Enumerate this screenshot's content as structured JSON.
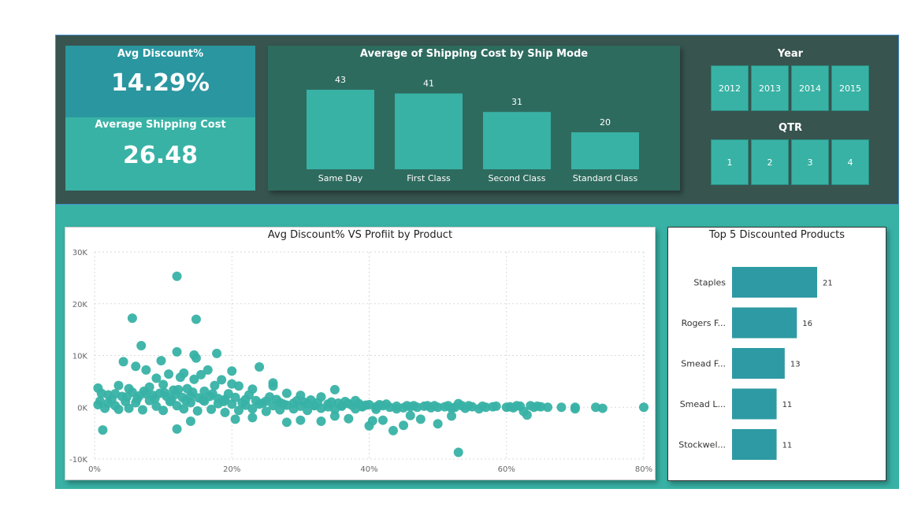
{
  "kpis": {
    "avg_discount_label": "Avg Discount%",
    "avg_discount_value": "14.29%",
    "avg_shipping_label": "Average Shipping Cost",
    "avg_shipping_value": "26.48"
  },
  "colors": {
    "top_band": "#37544f",
    "teal": "#38b2a5",
    "kpi_top": "#2a96a0",
    "bar_card": "#2e6b5f",
    "bar": "#38b2a5",
    "top5_bar": "#2e9aa3"
  },
  "slicers": {
    "year_title": "Year",
    "years": [
      "2012",
      "2013",
      "2014",
      "2015"
    ],
    "qtr_title": "QTR",
    "qtrs": [
      "1",
      "2",
      "3",
      "4"
    ]
  },
  "chart_data": [
    {
      "type": "bar",
      "title": "Average of Shipping Cost by Ship Mode",
      "categories": [
        "Same Day",
        "First Class",
        "Second Class",
        "Standard Class"
      ],
      "values": [
        43,
        41,
        31,
        20
      ],
      "data_labels": [
        "43",
        "41",
        "31",
        "20"
      ],
      "ylim": [
        0,
        43
      ]
    },
    {
      "type": "scatter",
      "title": "Avg Discount% VS Profiit by Product",
      "xlim": [
        0,
        0.8
      ],
      "ylim": [
        -10000,
        30000
      ],
      "x_ticks": [
        "0%",
        "20%",
        "40%",
        "60%",
        "80%"
      ],
      "y_ticks": [
        "30K",
        "20K",
        "10K",
        "0K",
        "-10K"
      ],
      "grid": true,
      "points": [
        {
          "x": 0.12,
          "y": 25300
        },
        {
          "x": 0.055,
          "y": 17200
        },
        {
          "x": 0.148,
          "y": 17000
        },
        {
          "x": 0.068,
          "y": 11900
        },
        {
          "x": 0.12,
          "y": 10700
        },
        {
          "x": 0.145,
          "y": 10100
        },
        {
          "x": 0.148,
          "y": 9500
        },
        {
          "x": 0.178,
          "y": 10400
        },
        {
          "x": 0.042,
          "y": 8800
        },
        {
          "x": 0.097,
          "y": 9000
        },
        {
          "x": 0.24,
          "y": 7800
        },
        {
          "x": 0.2,
          "y": 7000
        },
        {
          "x": 0.06,
          "y": 7900
        },
        {
          "x": 0.075,
          "y": 7200
        },
        {
          "x": 0.13,
          "y": 6600
        },
        {
          "x": 0.155,
          "y": 6300
        },
        {
          "x": 0.165,
          "y": 7200
        },
        {
          "x": 0.108,
          "y": 6400
        },
        {
          "x": 0.09,
          "y": 5600
        },
        {
          "x": 0.125,
          "y": 5800
        },
        {
          "x": 0.145,
          "y": 5400
        },
        {
          "x": 0.185,
          "y": 5300
        },
        {
          "x": 0.035,
          "y": 4200
        },
        {
          "x": 0.05,
          "y": 3600
        },
        {
          "x": 0.08,
          "y": 3900
        },
        {
          "x": 0.1,
          "y": 4400
        },
        {
          "x": 0.115,
          "y": 3300
        },
        {
          "x": 0.135,
          "y": 3600
        },
        {
          "x": 0.16,
          "y": 3100
        },
        {
          "x": 0.175,
          "y": 4200
        },
        {
          "x": 0.2,
          "y": 4500
        },
        {
          "x": 0.21,
          "y": 4100
        },
        {
          "x": 0.23,
          "y": 3500
        },
        {
          "x": 0.26,
          "y": 4100
        },
        {
          "x": 0.26,
          "y": 4700
        },
        {
          "x": 0.28,
          "y": 2700
        },
        {
          "x": 0.3,
          "y": 2300
        },
        {
          "x": 0.33,
          "y": 2000
        },
        {
          "x": 0.35,
          "y": 3400
        },
        {
          "x": 0.38,
          "y": 1300
        },
        {
          "x": 0.005,
          "y": 3700
        },
        {
          "x": 0.01,
          "y": 2700
        },
        {
          "x": 0.02,
          "y": 2400
        },
        {
          "x": 0.03,
          "y": 2600
        },
        {
          "x": 0.04,
          "y": 2100
        },
        {
          "x": 0.055,
          "y": 2900
        },
        {
          "x": 0.065,
          "y": 2200
        },
        {
          "x": 0.075,
          "y": 2600
        },
        {
          "x": 0.085,
          "y": 2300
        },
        {
          "x": 0.095,
          "y": 2700
        },
        {
          "x": 0.105,
          "y": 2100
        },
        {
          "x": 0.118,
          "y": 2500
        },
        {
          "x": 0.128,
          "y": 1900
        },
        {
          "x": 0.14,
          "y": 2200
        },
        {
          "x": 0.152,
          "y": 1800
        },
        {
          "x": 0.168,
          "y": 2100
        },
        {
          "x": 0.18,
          "y": 1700
        },
        {
          "x": 0.19,
          "y": 1500
        },
        {
          "x": 0.205,
          "y": 1900
        },
        {
          "x": 0.22,
          "y": 1500
        },
        {
          "x": 0.235,
          "y": 1300
        },
        {
          "x": 0.25,
          "y": 1200
        },
        {
          "x": 0.27,
          "y": 900
        },
        {
          "x": 0.29,
          "y": 800
        },
        {
          "x": 0.31,
          "y": 700
        },
        {
          "x": 0.32,
          "y": 400
        },
        {
          "x": 0.34,
          "y": 600
        },
        {
          "x": 0.36,
          "y": 300
        },
        {
          "x": 0.37,
          "y": 700
        },
        {
          "x": 0.39,
          "y": 200
        },
        {
          "x": 0.4,
          "y": 500
        },
        {
          "x": 0.41,
          "y": 100
        },
        {
          "x": 0.42,
          "y": 300
        },
        {
          "x": 0.43,
          "y": 0
        },
        {
          "x": 0.44,
          "y": 200
        },
        {
          "x": 0.45,
          "y": -100
        },
        {
          "x": 0.46,
          "y": 100
        },
        {
          "x": 0.47,
          "y": 0
        },
        {
          "x": 0.48,
          "y": 200
        },
        {
          "x": 0.49,
          "y": -100
        },
        {
          "x": 0.5,
          "y": 0
        },
        {
          "x": 0.51,
          "y": 100
        },
        {
          "x": 0.52,
          "y": -200
        },
        {
          "x": 0.525,
          "y": 0
        },
        {
          "x": 0.53,
          "y": 700
        },
        {
          "x": 0.54,
          "y": -200
        },
        {
          "x": 0.55,
          "y": 100
        },
        {
          "x": 0.56,
          "y": -300
        },
        {
          "x": 0.57,
          "y": 0
        },
        {
          "x": 0.58,
          "y": 100
        },
        {
          "x": 0.6,
          "y": 0
        },
        {
          "x": 0.61,
          "y": -100
        },
        {
          "x": 0.62,
          "y": 200
        },
        {
          "x": 0.625,
          "y": -800
        },
        {
          "x": 0.63,
          "y": -1500
        },
        {
          "x": 0.64,
          "y": 0
        },
        {
          "x": 0.65,
          "y": 100
        },
        {
          "x": 0.66,
          "y": 0
        },
        {
          "x": 0.68,
          "y": 0
        },
        {
          "x": 0.7,
          "y": 0
        },
        {
          "x": 0.7,
          "y": -300
        },
        {
          "x": 0.73,
          "y": 0
        },
        {
          "x": 0.74,
          "y": -200
        },
        {
          "x": 0.8,
          "y": 0
        },
        {
          "x": 0.012,
          "y": -4400
        },
        {
          "x": 0.12,
          "y": -4200
        },
        {
          "x": 0.14,
          "y": -2700
        },
        {
          "x": 0.205,
          "y": -2300
        },
        {
          "x": 0.23,
          "y": -2000
        },
        {
          "x": 0.28,
          "y": -2900
        },
        {
          "x": 0.3,
          "y": -2500
        },
        {
          "x": 0.33,
          "y": -2700
        },
        {
          "x": 0.35,
          "y": -1700
        },
        {
          "x": 0.37,
          "y": -2200
        },
        {
          "x": 0.405,
          "y": -2600
        },
        {
          "x": 0.42,
          "y": -2500
        },
        {
          "x": 0.4,
          "y": -3600
        },
        {
          "x": 0.46,
          "y": -1600
        },
        {
          "x": 0.435,
          "y": -4500
        },
        {
          "x": 0.475,
          "y": -2300
        },
        {
          "x": 0.5,
          "y": -3200
        },
        {
          "x": 0.53,
          "y": -8700
        },
        {
          "x": 0.52,
          "y": -1700
        },
        {
          "x": 0.45,
          "y": -3500
        },
        {
          "x": 0.005,
          "y": 500
        },
        {
          "x": 0.008,
          "y": 1200
        },
        {
          "x": 0.015,
          "y": -200
        },
        {
          "x": 0.02,
          "y": 800
        },
        {
          "x": 0.025,
          "y": 1500
        },
        {
          "x": 0.03,
          "y": 300
        },
        {
          "x": 0.035,
          "y": -400
        },
        {
          "x": 0.045,
          "y": 1100
        },
        {
          "x": 0.05,
          "y": -200
        },
        {
          "x": 0.06,
          "y": 900
        },
        {
          "x": 0.07,
          "y": -500
        },
        {
          "x": 0.08,
          "y": 1300
        },
        {
          "x": 0.09,
          "y": 200
        },
        {
          "x": 0.1,
          "y": -600
        },
        {
          "x": 0.11,
          "y": 1100
        },
        {
          "x": 0.12,
          "y": 300
        },
        {
          "x": 0.13,
          "y": -300
        },
        {
          "x": 0.14,
          "y": 900
        },
        {
          "x": 0.15,
          "y": -700
        },
        {
          "x": 0.16,
          "y": 1200
        },
        {
          "x": 0.17,
          "y": -400
        },
        {
          "x": 0.18,
          "y": 700
        },
        {
          "x": 0.19,
          "y": -1000
        },
        {
          "x": 0.2,
          "y": 600
        },
        {
          "x": 0.21,
          "y": -600
        },
        {
          "x": 0.22,
          "y": 400
        },
        {
          "x": 0.23,
          "y": -300
        },
        {
          "x": 0.24,
          "y": 600
        },
        {
          "x": 0.25,
          "y": -800
        },
        {
          "x": 0.26,
          "y": 300
        },
        {
          "x": 0.27,
          "y": -500
        },
        {
          "x": 0.28,
          "y": 400
        },
        {
          "x": 0.29,
          "y": -300
        },
        {
          "x": 0.3,
          "y": 200
        },
        {
          "x": 0.31,
          "y": -600
        },
        {
          "x": 0.32,
          "y": 300
        },
        {
          "x": 0.33,
          "y": -200
        },
        {
          "x": 0.34,
          "y": 100
        },
        {
          "x": 0.35,
          "y": -400
        },
        {
          "x": 0.36,
          "y": 200
        },
        {
          "x": 0.38,
          "y": -300
        },
        {
          "x": 0.39,
          "y": 100
        },
        {
          "x": 0.41,
          "y": -400
        },
        {
          "x": 0.44,
          "y": -300
        },
        {
          "x": 0.047,
          "y": 2000
        },
        {
          "x": 0.062,
          "y": 1600
        },
        {
          "x": 0.072,
          "y": 3100
        },
        {
          "x": 0.088,
          "y": 1700
        },
        {
          "x": 0.102,
          "y": 2800
        },
        {
          "x": 0.112,
          "y": 1400
        },
        {
          "x": 0.122,
          "y": 3400
        },
        {
          "x": 0.133,
          "y": 1300
        },
        {
          "x": 0.143,
          "y": 2900
        },
        {
          "x": 0.158,
          "y": 1400
        },
        {
          "x": 0.172,
          "y": 2600
        },
        {
          "x": 0.188,
          "y": 1100
        },
        {
          "x": 0.195,
          "y": 2600
        },
        {
          "x": 0.215,
          "y": 900
        },
        {
          "x": 0.225,
          "y": 2400
        },
        {
          "x": 0.245,
          "y": 800
        },
        {
          "x": 0.255,
          "y": 2000
        },
        {
          "x": 0.265,
          "y": 1500
        },
        {
          "x": 0.275,
          "y": 600
        },
        {
          "x": 0.295,
          "y": 1300
        },
        {
          "x": 0.305,
          "y": 1000
        },
        {
          "x": 0.315,
          "y": 1400
        },
        {
          "x": 0.325,
          "y": 900
        },
        {
          "x": 0.345,
          "y": 1000
        },
        {
          "x": 0.355,
          "y": 800
        },
        {
          "x": 0.365,
          "y": 1100
        },
        {
          "x": 0.375,
          "y": 400
        },
        {
          "x": 0.385,
          "y": 700
        },
        {
          "x": 0.395,
          "y": 400
        },
        {
          "x": 0.415,
          "y": 500
        },
        {
          "x": 0.425,
          "y": 600
        },
        {
          "x": 0.455,
          "y": 300
        },
        {
          "x": 0.465,
          "y": 300
        },
        {
          "x": 0.485,
          "y": 300
        },
        {
          "x": 0.495,
          "y": 300
        },
        {
          "x": 0.515,
          "y": 300
        },
        {
          "x": 0.535,
          "y": 300
        },
        {
          "x": 0.545,
          "y": 300
        },
        {
          "x": 0.565,
          "y": 200
        },
        {
          "x": 0.585,
          "y": 200
        },
        {
          "x": 0.605,
          "y": 100
        },
        {
          "x": 0.615,
          "y": 300
        },
        {
          "x": 0.635,
          "y": 300
        },
        {
          "x": 0.645,
          "y": 200
        }
      ]
    },
    {
      "type": "bar",
      "title": "Top 5 Discounted Products",
      "orientation": "horizontal",
      "categories": [
        "Staples",
        "Rogers F...",
        "Smead F...",
        "Smead L...",
        "Stockwel..."
      ],
      "values": [
        21,
        16,
        13,
        11,
        11
      ],
      "data_labels": [
        "21",
        "16",
        "13",
        "11",
        "11"
      ]
    }
  ]
}
